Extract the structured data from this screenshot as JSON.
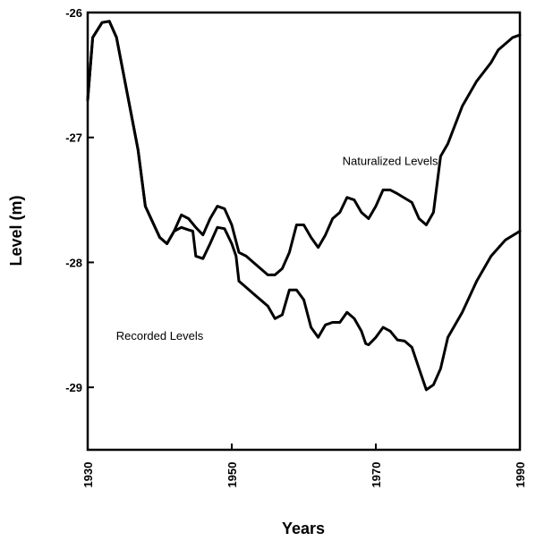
{
  "chart_data": {
    "type": "line",
    "xlabel": "Years",
    "ylabel": "Level (m)",
    "xlim": [
      1930,
      1990
    ],
    "ylim": [
      -29.5,
      -26
    ],
    "xticks": [
      "1930",
      "1950",
      "1970",
      "1990"
    ],
    "yticks": [
      "-26",
      "-27",
      "-28",
      "-29"
    ],
    "grid": false,
    "legend": "none",
    "annotations": [
      {
        "text": "Naturalized Levels",
        "x": 1972,
        "y": -27.22
      },
      {
        "text": "Recorded Levels",
        "x": 1940,
        "y": -28.62
      }
    ],
    "series": [
      {
        "name": "Naturalized Levels",
        "x": [
          1930,
          1930.7,
          1932,
          1933,
          1934,
          1936,
          1937,
          1938,
          1940,
          1941,
          1942,
          1943,
          1944,
          1945,
          1946,
          1947,
          1948,
          1949,
          1950,
          1951,
          1952,
          1953,
          1954,
          1955,
          1956,
          1957,
          1958,
          1959,
          1960,
          1961,
          1962,
          1963,
          1964,
          1965,
          1966,
          1967,
          1968,
          1969,
          1970,
          1971,
          1972,
          1973,
          1975,
          1976,
          1977,
          1978,
          1979,
          1980,
          1982,
          1984,
          1986,
          1987,
          1988,
          1989,
          1990
        ],
        "y": [
          -26.7,
          -26.2,
          -26.08,
          -26.07,
          -26.2,
          -26.8,
          -27.1,
          -27.55,
          -27.8,
          -27.85,
          -27.75,
          -27.62,
          -27.65,
          -27.72,
          -27.78,
          -27.65,
          -27.55,
          -27.57,
          -27.7,
          -27.92,
          -27.95,
          -28.0,
          -28.05,
          -28.1,
          -28.1,
          -28.05,
          -27.92,
          -27.7,
          -27.7,
          -27.8,
          -27.88,
          -27.78,
          -27.65,
          -27.6,
          -27.48,
          -27.5,
          -27.6,
          -27.65,
          -27.55,
          -27.42,
          -27.42,
          -27.45,
          -27.52,
          -27.65,
          -27.7,
          -27.6,
          -27.15,
          -27.05,
          -26.75,
          -26.55,
          -26.4,
          -26.3,
          -26.25,
          -26.2,
          -26.18
        ]
      },
      {
        "name": "Recorded Levels",
        "x": [
          1930,
          1930.7,
          1932,
          1933,
          1934,
          1936,
          1937,
          1938,
          1940,
          1941,
          1942,
          1943,
          1944,
          1944.6,
          1945,
          1946,
          1947,
          1948,
          1949,
          1950,
          1950.6,
          1951,
          1952,
          1953,
          1954,
          1955,
          1956,
          1957,
          1958,
          1959,
          1960,
          1961,
          1962,
          1963,
          1964,
          1965,
          1966,
          1967,
          1968,
          1968.6,
          1969,
          1970,
          1971,
          1972,
          1973,
          1974,
          1975,
          1976,
          1977,
          1978,
          1979,
          1980,
          1982,
          1984,
          1986,
          1988,
          1990
        ],
        "y": [
          -26.7,
          -26.2,
          -26.08,
          -26.07,
          -26.2,
          -26.8,
          -27.1,
          -27.55,
          -27.8,
          -27.85,
          -27.75,
          -27.72,
          -27.74,
          -27.75,
          -27.95,
          -27.97,
          -27.85,
          -27.72,
          -27.73,
          -27.85,
          -27.95,
          -28.15,
          -28.2,
          -28.25,
          -28.3,
          -28.35,
          -28.45,
          -28.42,
          -28.22,
          -28.22,
          -28.3,
          -28.52,
          -28.6,
          -28.5,
          -28.48,
          -28.48,
          -28.4,
          -28.45,
          -28.55,
          -28.65,
          -28.66,
          -28.6,
          -28.52,
          -28.55,
          -28.62,
          -28.63,
          -28.68,
          -28.85,
          -29.02,
          -28.98,
          -28.85,
          -28.6,
          -28.4,
          -28.15,
          -27.95,
          -27.82,
          -27.75
        ]
      }
    ]
  }
}
